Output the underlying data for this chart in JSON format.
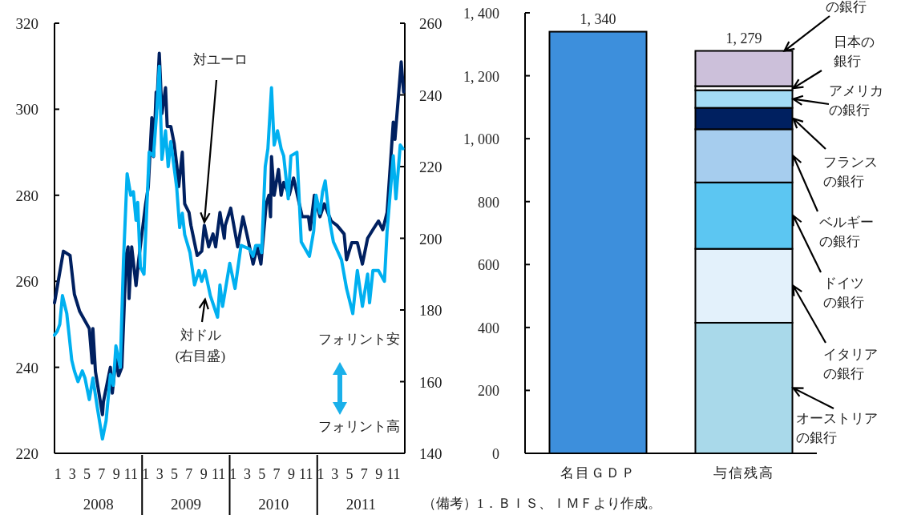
{
  "chart_data": [
    {
      "type": "line",
      "xlim": [
        "2008-01-01",
        "2012-01-01"
      ],
      "xticks": [
        {
          "value": "2008-01-15",
          "label": "1"
        },
        {
          "value": "2008-03-15",
          "label": "3"
        },
        {
          "value": "2008-05-15",
          "label": "5"
        },
        {
          "value": "2008-07-15",
          "label": "7"
        },
        {
          "value": "2008-09-15",
          "label": "9"
        },
        {
          "value": "2008-11-15",
          "label": "11"
        },
        {
          "value": "2009-01-15",
          "label": "1"
        },
        {
          "value": "2009-03-15",
          "label": "3"
        },
        {
          "value": "2009-05-15",
          "label": "5"
        },
        {
          "value": "2009-07-15",
          "label": "7"
        },
        {
          "value": "2009-09-15",
          "label": "9"
        },
        {
          "value": "2009-11-15",
          "label": "11"
        },
        {
          "value": "2010-01-15",
          "label": "1"
        },
        {
          "value": "2010-03-15",
          "label": "3"
        },
        {
          "value": "2010-05-15",
          "label": "5"
        },
        {
          "value": "2010-07-15",
          "label": "7"
        },
        {
          "value": "2010-09-15",
          "label": "9"
        },
        {
          "value": "2010-11-15",
          "label": "11"
        },
        {
          "value": "2011-01-15",
          "label": "1"
        },
        {
          "value": "2011-03-15",
          "label": "3"
        },
        {
          "value": "2011-05-15",
          "label": "5"
        },
        {
          "value": "2011-07-15",
          "label": "7"
        },
        {
          "value": "2011-09-15",
          "label": "9"
        },
        {
          "value": "2011-11-15",
          "label": "11"
        }
      ],
      "ylim": [
        220,
        320
      ],
      "yticks": [
        220,
        240,
        260,
        280,
        300,
        320
      ],
      "y2lim": [
        140,
        260
      ],
      "y2ticks": [
        140,
        160,
        180,
        200,
        220,
        240,
        260
      ],
      "series": [
        {
          "name": "対ユーロ",
          "color": "#002060",
          "x": [
            "2008-01-01",
            "2008-02-07",
            "2008-03-06",
            "2008-03-24",
            "2008-04-15",
            "2008-05-25",
            "2008-06-06",
            "2008-06-09",
            "2008-06-20",
            "2008-07-19",
            "2008-07-23",
            "2008-08-21",
            "2008-08-29",
            "2008-09-13",
            "2008-09-24",
            "2008-10-08",
            "2008-10-26",
            "2008-11-03",
            "2008-11-07",
            "2008-11-18",
            "2008-12-06",
            "2008-12-17",
            "2009-01-15",
            "2009-01-26",
            "2009-02-10",
            "2009-02-17",
            "2009-02-28",
            "2009-03-02",
            "2009-03-13",
            "2009-03-24",
            "2009-04-08",
            "2009-04-15",
            "2009-04-30",
            "2009-05-14",
            "2009-05-25",
            "2009-06-02",
            "2009-06-17",
            "2009-06-27",
            "2009-07-15",
            "2009-07-23",
            "2009-08-18",
            "2009-09-06",
            "2009-09-17",
            "2009-10-05",
            "2009-10-23",
            "2009-11-03",
            "2009-11-21",
            "2009-12-09",
            "2009-12-13",
            "2010-01-05",
            "2010-02-03",
            "2010-02-25",
            "2010-03-17",
            "2010-04-08",
            "2010-04-26",
            "2010-05-11",
            "2010-06-02",
            "2010-06-13",
            "2010-06-20",
            "2010-06-24",
            "2010-07-05",
            "2010-07-23",
            "2010-08-03",
            "2010-08-14",
            "2010-09-06",
            "2010-09-24",
            "2010-10-30",
            "2010-11-25",
            "2010-12-02",
            "2010-12-20",
            "2011-01-12",
            "2011-01-30",
            "2011-02-28",
            "2011-03-24",
            "2011-04-23",
            "2011-05-03",
            "2011-05-25",
            "2011-06-17",
            "2011-07-08",
            "2011-07-30",
            "2011-08-21",
            "2011-09-13",
            "2011-10-01",
            "2011-10-19",
            "2011-11-14",
            "2011-11-21",
            "2011-12-17",
            "2011-12-27"
          ],
          "values": [
            255,
            267,
            266,
            257,
            253,
            249,
            241,
            249,
            239,
            229,
            232,
            240,
            234,
            242,
            238,
            240,
            266,
            268,
            256,
            268,
            259,
            265,
            278,
            282,
            298,
            289,
            304,
            300,
            313,
            299,
            305,
            296,
            296,
            292,
            287,
            282,
            290,
            278,
            276,
            273,
            266,
            267,
            273,
            268,
            271,
            268,
            276,
            270,
            273,
            277,
            268,
            275,
            270,
            264,
            268,
            264,
            278,
            280,
            275,
            289,
            280,
            286,
            280,
            283,
            280,
            284,
            275,
            275,
            272,
            280,
            275,
            278,
            274,
            273,
            271,
            265,
            269,
            269,
            264,
            270,
            272,
            274,
            272,
            276,
            297,
            293,
            311,
            304
          ]
        },
        {
          "name": "対ドル\n(右目盛)",
          "color": "#00b0f0",
          "axis": "y2",
          "x": [
            "2008-01-01",
            "2008-01-12",
            "2008-01-23",
            "2008-02-03",
            "2008-02-21",
            "2008-03-02",
            "2008-03-13",
            "2008-03-24",
            "2008-04-08",
            "2008-04-26",
            "2008-05-07",
            "2008-05-25",
            "2008-06-09",
            "2008-06-27",
            "2008-07-19",
            "2008-08-03",
            "2008-08-21",
            "2008-09-02",
            "2008-09-13",
            "2008-10-01",
            "2008-10-15",
            "2008-10-30",
            "2008-11-14",
            "2008-11-25",
            "2008-12-06",
            "2008-12-13",
            "2008-12-24",
            "2009-01-08",
            "2009-01-30",
            "2009-02-17",
            "2009-03-02",
            "2009-03-13",
            "2009-03-24",
            "2009-04-08",
            "2009-04-19",
            "2009-04-30",
            "2009-05-25",
            "2009-06-06",
            "2009-06-17",
            "2009-06-27",
            "2009-07-19",
            "2009-08-07",
            "2009-08-25",
            "2009-09-06",
            "2009-09-20",
            "2009-10-12",
            "2009-11-11",
            "2009-11-21",
            "2009-12-02",
            "2010-01-01",
            "2010-01-23",
            "2010-02-17",
            "2010-03-24",
            "2010-04-08",
            "2010-04-19",
            "2010-05-07",
            "2010-05-14",
            "2010-05-29",
            "2010-06-09",
            "2010-06-24",
            "2010-07-05",
            "2010-07-19",
            "2010-08-03",
            "2010-08-14",
            "2010-09-02",
            "2010-09-13",
            "2010-10-08",
            "2010-10-26",
            "2010-11-29",
            "2010-12-17",
            "2010-12-27",
            "2011-01-12",
            "2011-01-23",
            "2011-02-03",
            "2011-02-21",
            "2011-03-09",
            "2011-04-12",
            "2011-05-03",
            "2011-05-29",
            "2011-06-17",
            "2011-07-08",
            "2011-07-30",
            "2011-08-07",
            "2011-08-21",
            "2011-09-13",
            "2011-10-08",
            "2011-10-19",
            "2011-11-14",
            "2011-11-25",
            "2011-12-13",
            "2011-12-24"
          ],
          "values": [
            173,
            174,
            176,
            184,
            179,
            173,
            166,
            163,
            160,
            163,
            161,
            155,
            161,
            153,
            144,
            149,
            162,
            159,
            170,
            164,
            194,
            218,
            212,
            213,
            205,
            210,
            192,
            190,
            224,
            223,
            235,
            248,
            222,
            230,
            220,
            227,
            214,
            203,
            207,
            201,
            196,
            187,
            191,
            188,
            191,
            184,
            178,
            187,
            181,
            193,
            186,
            198,
            197,
            195,
            198,
            198,
            196,
            220,
            225,
            242,
            226,
            230,
            225,
            223,
            211,
            223,
            224,
            199,
            195,
            202,
            212,
            207,
            213,
            216,
            205,
            199,
            194,
            186,
            179,
            191,
            181,
            190,
            182,
            191,
            191,
            188,
            202,
            223,
            211,
            226,
            225
          ]
        }
      ],
      "annotations": [
        "フォリント安",
        "フォリント高",
        "2008",
        "2009",
        "2010",
        "2011"
      ]
    },
    {
      "type": "bar",
      "stacked": true,
      "legend": "right",
      "categories": [
        "名目ＧＤＰ",
        "与信残高"
      ],
      "ylim": [
        0,
        1400
      ],
      "yticks": [
        0,
        200,
        400,
        600,
        800,
        {
          "value": 1000,
          "label": "1, 000"
        },
        {
          "value": 1200,
          "label": "1, 200"
        },
        {
          "value": 1400,
          "label": "1, 400"
        }
      ],
      "series": [
        {
          "color": "#3d8fdc",
          "values": [
            1340,
            null
          ]
        },
        {
          "name": "オーストリアの銀行",
          "color": "#a9d9ea",
          "values": [
            null,
            415
          ]
        },
        {
          "name": "イタリアの銀行",
          "color": "#e3f1fb",
          "values": [
            null,
            235
          ]
        },
        {
          "name": "ドイツの銀行",
          "color": "#5cc6f2",
          "values": [
            null,
            211
          ]
        },
        {
          "name": "ベルギーの銀行",
          "color": "#a6cdee",
          "values": [
            null,
            169
          ]
        },
        {
          "name": "フランスの銀行",
          "color": "#002060",
          "values": [
            null,
            68
          ]
        },
        {
          "name": "アメリカの銀行",
          "color": "#a3dbf5",
          "values": [
            null,
            56
          ]
        },
        {
          "name": "日本の銀行",
          "color": "#ffffff",
          "values": [
            null,
            13
          ]
        },
        {
          "name": "の銀行",
          "color": "#ccc0da",
          "values": [
            null,
            112
          ]
        }
      ],
      "totals": [
        "1, 340",
        "1, 279"
      ],
      "annotations": [
        "（備考）1．ＢＩＳ、ＩＭＦより作成。"
      ]
    }
  ]
}
